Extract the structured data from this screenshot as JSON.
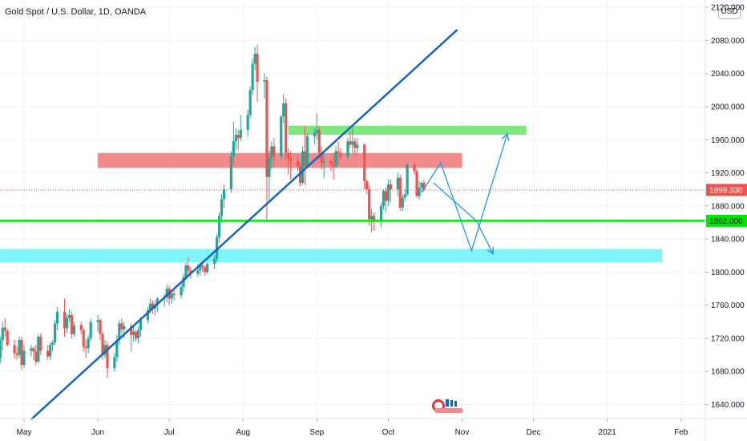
{
  "title": "Gold Spot / U.S. Dollar, 1D, OANDA",
  "currency_badge": "USD",
  "colors": {
    "bull": "#26a69a",
    "bear": "#ef5350",
    "trendline": "#1565c0",
    "support_line": "#00e600",
    "resistance_zone": "#f28b8b",
    "upper_zone": "#7ee87e",
    "lower_zone": "#7ff5f9",
    "projection": "#2196f3",
    "last_price_line": "#e06060"
  },
  "chart_data": {
    "type": "candlestick",
    "ylim": [
      1625,
      2125
    ],
    "y_ticks": [
      "2120.000",
      "2080.000",
      "2040.000",
      "2000.000",
      "1960.000",
      "1920.000",
      "1880.000",
      "1840.000",
      "1800.000",
      "1760.000",
      "1720.000",
      "1680.000",
      "1640.000"
    ],
    "x_ticks": [
      "May",
      "Jun",
      "Jul",
      "Aug",
      "Sep",
      "Oct",
      "Nov",
      "Dec",
      "2021",
      "Feb"
    ],
    "last_price": {
      "label": "1899.330",
      "value": 1899.33
    },
    "support_level": {
      "label": "1862.000",
      "value": 1862.0
    },
    "zones": [
      {
        "name": "resistance",
        "from": "2020-06-01",
        "to": "2020-11-01",
        "low": 1926,
        "high": 1944
      },
      {
        "name": "upper",
        "from": "2020-08-20",
        "to": "2020-11-28",
        "low": 1966,
        "high": 1977
      },
      {
        "name": "lower",
        "from": "2020-04-12",
        "to": "2021-01-24",
        "low": 1812,
        "high": 1828
      }
    ],
    "trendline": {
      "from": [
        "2020-05-04",
        1622
      ],
      "to": [
        "2020-10-30",
        2093
      ]
    },
    "projection_paths": [
      [
        [
          "2020-10-15",
          1896
        ],
        [
          "2020-10-23",
          1932
        ],
        [
          "2020-11-05",
          1826
        ],
        [
          "2020-11-20",
          1967
        ]
      ],
      [
        [
          "2020-10-20",
          1908
        ],
        [
          "2020-11-07",
          1862
        ],
        [
          "2020-11-14",
          1822
        ]
      ]
    ],
    "ohlc": [
      [
        "2020-04-10",
        1684,
        1742,
        1678,
        1735
      ],
      [
        "2020-04-13",
        1735,
        1745,
        1700,
        1718
      ],
      [
        "2020-04-14",
        1718,
        1732,
        1704,
        1722
      ],
      [
        "2020-04-15",
        1722,
        1728,
        1690,
        1702
      ],
      [
        "2020-04-16",
        1702,
        1722,
        1690,
        1716
      ],
      [
        "2020-04-17",
        1716,
        1720,
        1680,
        1685
      ],
      [
        "2020-04-20",
        1685,
        1700,
        1675,
        1696
      ],
      [
        "2020-04-21",
        1696,
        1722,
        1690,
        1718
      ],
      [
        "2020-04-22",
        1718,
        1740,
        1705,
        1733
      ],
      [
        "2020-04-23",
        1733,
        1744,
        1722,
        1729
      ],
      [
        "2020-04-24",
        1729,
        1732,
        1710,
        1712
      ],
      [
        "2020-04-27",
        1712,
        1718,
        1695,
        1702
      ],
      [
        "2020-04-28",
        1702,
        1710,
        1694,
        1700
      ],
      [
        "2020-04-29",
        1700,
        1722,
        1696,
        1718
      ],
      [
        "2020-04-30",
        1718,
        1722,
        1682,
        1688
      ],
      [
        "2020-05-01",
        1688,
        1712,
        1684,
        1705
      ],
      [
        "2020-05-04",
        1705,
        1712,
        1698,
        1708
      ],
      [
        "2020-05-05",
        1708,
        1710,
        1694,
        1704
      ],
      [
        "2020-05-06",
        1704,
        1712,
        1688,
        1692
      ],
      [
        "2020-05-07",
        1692,
        1725,
        1690,
        1722
      ],
      [
        "2020-05-08",
        1722,
        1726,
        1700,
        1705
      ],
      [
        "2020-05-11",
        1705,
        1712,
        1694,
        1698
      ],
      [
        "2020-05-12",
        1698,
        1715,
        1694,
        1712
      ],
      [
        "2020-05-13",
        1712,
        1718,
        1704,
        1715
      ],
      [
        "2020-05-14",
        1715,
        1742,
        1712,
        1738
      ],
      [
        "2020-05-15",
        1738,
        1758,
        1730,
        1752
      ],
      [
        "2020-05-18",
        1752,
        1768,
        1722,
        1732
      ],
      [
        "2020-05-19",
        1732,
        1750,
        1726,
        1745
      ],
      [
        "2020-05-20",
        1745,
        1755,
        1740,
        1748
      ],
      [
        "2020-05-21",
        1748,
        1752,
        1720,
        1725
      ],
      [
        "2020-05-22",
        1725,
        1740,
        1722,
        1736
      ],
      [
        "2020-05-25",
        1736,
        1740,
        1725,
        1730
      ],
      [
        "2020-05-26",
        1730,
        1732,
        1704,
        1710
      ],
      [
        "2020-05-27",
        1710,
        1718,
        1696,
        1708
      ],
      [
        "2020-05-28",
        1708,
        1724,
        1702,
        1720
      ],
      [
        "2020-05-29",
        1720,
        1744,
        1716,
        1740
      ],
      [
        "2020-06-01",
        1740,
        1748,
        1728,
        1742
      ],
      [
        "2020-06-02",
        1742,
        1744,
        1718,
        1725
      ],
      [
        "2020-06-03",
        1725,
        1728,
        1694,
        1700
      ],
      [
        "2020-06-04",
        1700,
        1718,
        1696,
        1712
      ],
      [
        "2020-06-05",
        1712,
        1716,
        1672,
        1684
      ],
      [
        "2020-06-08",
        1684,
        1702,
        1680,
        1697
      ],
      [
        "2020-06-09",
        1697,
        1724,
        1692,
        1718
      ],
      [
        "2020-06-10",
        1718,
        1742,
        1712,
        1738
      ],
      [
        "2020-06-11",
        1738,
        1744,
        1726,
        1731
      ],
      [
        "2020-06-12",
        1731,
        1740,
        1720,
        1735
      ],
      [
        "2020-06-15",
        1735,
        1738,
        1704,
        1724
      ],
      [
        "2020-06-16",
        1724,
        1734,
        1716,
        1728
      ],
      [
        "2020-06-17",
        1728,
        1730,
        1716,
        1720
      ],
      [
        "2020-06-18",
        1720,
        1734,
        1714,
        1730
      ],
      [
        "2020-06-19",
        1730,
        1746,
        1722,
        1742
      ],
      [
        "2020-06-22",
        1742,
        1758,
        1738,
        1754
      ],
      [
        "2020-06-23",
        1754,
        1768,
        1750,
        1762
      ],
      [
        "2020-06-24",
        1762,
        1766,
        1750,
        1756
      ],
      [
        "2020-06-25",
        1756,
        1765,
        1748,
        1761
      ],
      [
        "2020-06-26",
        1761,
        1770,
        1752,
        1768
      ],
      [
        "2020-06-29",
        1768,
        1774,
        1758,
        1770
      ],
      [
        "2020-06-30",
        1770,
        1785,
        1764,
        1780
      ],
      [
        "2020-07-01",
        1780,
        1784,
        1760,
        1768
      ],
      [
        "2020-07-02",
        1768,
        1778,
        1762,
        1774
      ],
      [
        "2020-07-03",
        1774,
        1778,
        1766,
        1772
      ],
      [
        "2020-07-06",
        1772,
        1786,
        1768,
        1782
      ],
      [
        "2020-07-07",
        1782,
        1798,
        1776,
        1794
      ],
      [
        "2020-07-08",
        1794,
        1812,
        1790,
        1808
      ],
      [
        "2020-07-09",
        1808,
        1818,
        1796,
        1802
      ],
      [
        "2020-07-10",
        1802,
        1806,
        1792,
        1798
      ],
      [
        "2020-07-13",
        1798,
        1810,
        1794,
        1802
      ],
      [
        "2020-07-14",
        1802,
        1812,
        1796,
        1808
      ],
      [
        "2020-07-15",
        1808,
        1814,
        1800,
        1806
      ],
      [
        "2020-07-16",
        1806,
        1808,
        1796,
        1800
      ],
      [
        "2020-07-17",
        1800,
        1812,
        1798,
        1810
      ],
      [
        "2020-07-20",
        1810,
        1820,
        1804,
        1816
      ],
      [
        "2020-07-21",
        1816,
        1846,
        1812,
        1842
      ],
      [
        "2020-07-22",
        1842,
        1872,
        1836,
        1868
      ],
      [
        "2020-07-23",
        1868,
        1894,
        1860,
        1888
      ],
      [
        "2020-07-24",
        1888,
        1906,
        1878,
        1900
      ],
      [
        "2020-07-27",
        1900,
        1946,
        1896,
        1940
      ],
      [
        "2020-07-28",
        1940,
        1982,
        1930,
        1958
      ],
      [
        "2020-07-29",
        1958,
        1974,
        1948,
        1966
      ],
      [
        "2020-07-30",
        1966,
        1972,
        1948,
        1962
      ],
      [
        "2020-07-31",
        1962,
        1990,
        1958,
        1972
      ],
      [
        "2020-08-03",
        1972,
        1996,
        1964,
        1990
      ],
      [
        "2020-08-04",
        1990,
        2024,
        1986,
        2020
      ],
      [
        "2020-08-05",
        2020,
        2058,
        2014,
        2052
      ],
      [
        "2020-08-06",
        2052,
        2072,
        2044,
        2064
      ],
      [
        "2020-08-07",
        2064,
        2075,
        2006,
        2030
      ],
      [
        "2020-08-10",
        2030,
        2040,
        2010,
        2032
      ],
      [
        "2020-08-11",
        2032,
        2036,
        1862,
        1915
      ],
      [
        "2020-08-12",
        1915,
        1948,
        1886,
        1938
      ],
      [
        "2020-08-13",
        1938,
        1958,
        1924,
        1952
      ],
      [
        "2020-08-14",
        1952,
        1962,
        1928,
        1940
      ],
      [
        "2020-08-17",
        1940,
        1990,
        1936,
        1988
      ],
      [
        "2020-08-18",
        1988,
        2015,
        1980,
        2004
      ],
      [
        "2020-08-19",
        2004,
        2010,
        1936,
        1944
      ],
      [
        "2020-08-20",
        1944,
        1950,
        1918,
        1938
      ],
      [
        "2020-08-21",
        1938,
        1946,
        1912,
        1934
      ],
      [
        "2020-08-24",
        1934,
        1942,
        1922,
        1928
      ],
      [
        "2020-08-25",
        1928,
        1932,
        1904,
        1908
      ],
      [
        "2020-08-26",
        1908,
        1952,
        1906,
        1946
      ],
      [
        "2020-08-27",
        1946,
        1976,
        1906,
        1928
      ],
      [
        "2020-08-28",
        1928,
        1968,
        1926,
        1964
      ],
      [
        "2020-08-31",
        1964,
        1974,
        1954,
        1968
      ],
      [
        "2020-09-01",
        1968,
        1992,
        1960,
        1972
      ],
      [
        "2020-09-02",
        1972,
        1976,
        1936,
        1944
      ],
      [
        "2020-09-03",
        1944,
        1952,
        1924,
        1932
      ],
      [
        "2020-09-04",
        1932,
        1944,
        1914,
        1934
      ],
      [
        "2020-09-07",
        1934,
        1936,
        1922,
        1930
      ],
      [
        "2020-09-08",
        1930,
        1944,
        1912,
        1928
      ],
      [
        "2020-09-09",
        1928,
        1952,
        1926,
        1946
      ],
      [
        "2020-09-10",
        1946,
        1958,
        1930,
        1944
      ],
      [
        "2020-09-11",
        1944,
        1950,
        1936,
        1940
      ],
      [
        "2020-09-14",
        1940,
        1962,
        1936,
        1958
      ],
      [
        "2020-09-15",
        1958,
        1970,
        1950,
        1954
      ],
      [
        "2020-09-16",
        1954,
        1974,
        1944,
        1958
      ],
      [
        "2020-09-17",
        1958,
        1962,
        1940,
        1950
      ],
      [
        "2020-09-18",
        1950,
        1962,
        1944,
        1954
      ],
      [
        "2020-09-21",
        1954,
        1956,
        1900,
        1910
      ],
      [
        "2020-09-22",
        1910,
        1912,
        1894,
        1900
      ],
      [
        "2020-09-23",
        1900,
        1904,
        1856,
        1864
      ],
      [
        "2020-09-24",
        1864,
        1876,
        1848,
        1868
      ],
      [
        "2020-09-25",
        1868,
        1872,
        1850,
        1862
      ],
      [
        "2020-09-28",
        1862,
        1884,
        1854,
        1880
      ],
      [
        "2020-09-29",
        1880,
        1900,
        1876,
        1898
      ],
      [
        "2020-09-30",
        1898,
        1902,
        1872,
        1886
      ],
      [
        "2020-10-01",
        1886,
        1912,
        1880,
        1906
      ],
      [
        "2020-10-02",
        1906,
        1912,
        1884,
        1900
      ],
      [
        "2020-10-05",
        1900,
        1920,
        1892,
        1914
      ],
      [
        "2020-10-06",
        1914,
        1918,
        1874,
        1878
      ],
      [
        "2020-10-07",
        1878,
        1894,
        1874,
        1890
      ],
      [
        "2020-10-08",
        1890,
        1900,
        1886,
        1894
      ],
      [
        "2020-10-09",
        1894,
        1932,
        1892,
        1930
      ],
      [
        "2020-10-12",
        1930,
        1932,
        1918,
        1922
      ],
      [
        "2020-10-13",
        1922,
        1924,
        1890,
        1892
      ],
      [
        "2020-10-14",
        1892,
        1910,
        1888,
        1902
      ],
      [
        "2020-10-15",
        1902,
        1910,
        1896,
        1908
      ],
      [
        "2020-10-16",
        1908,
        1912,
        1898,
        1899
      ]
    ]
  }
}
